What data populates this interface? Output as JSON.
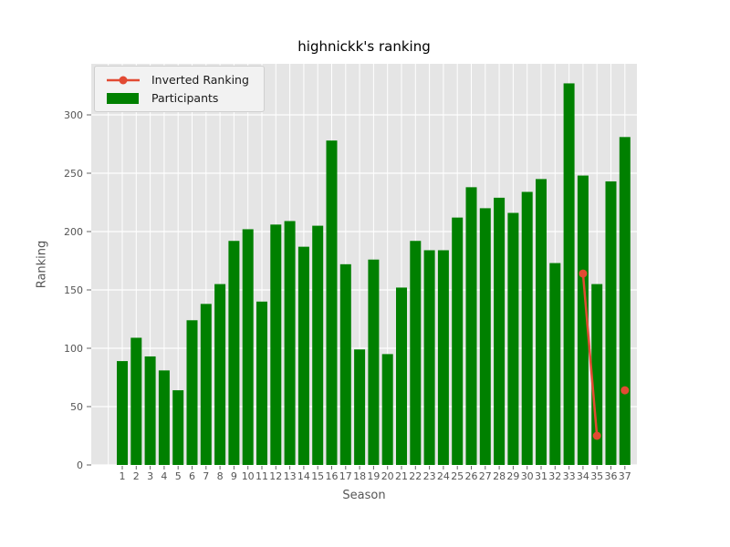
{
  "figure": {
    "background": "#ffffff"
  },
  "chart_data": {
    "type": "bar",
    "subtype": "bar+line combo",
    "title": "highnickk's ranking",
    "xlabel": "Season",
    "ylabel": "Ranking",
    "categories": [
      "1",
      "2",
      "3",
      "4",
      "5",
      "6",
      "7",
      "8",
      "9",
      "10",
      "11",
      "12",
      "13",
      "14",
      "15",
      "16",
      "17",
      "18",
      "19",
      "20",
      "21",
      "22",
      "23",
      "24",
      "25",
      "26",
      "27",
      "28",
      "29",
      "30",
      "31",
      "32",
      "33",
      "34",
      "35",
      "36",
      "37"
    ],
    "series": [
      {
        "name": "Inverted Ranking",
        "type": "line",
        "color": "#E24A33",
        "values": [
          null,
          null,
          null,
          null,
          null,
          null,
          null,
          null,
          null,
          null,
          null,
          null,
          null,
          null,
          null,
          null,
          null,
          null,
          null,
          null,
          null,
          null,
          null,
          null,
          null,
          null,
          null,
          null,
          null,
          null,
          null,
          null,
          null,
          164,
          25,
          null,
          64
        ]
      },
      {
        "name": "Participants",
        "type": "bar",
        "color": "#008000",
        "values": [
          89,
          109,
          93,
          81,
          64,
          124,
          138,
          155,
          192,
          202,
          140,
          206,
          209,
          187,
          205,
          278,
          172,
          99,
          176,
          95,
          152,
          192,
          184,
          184,
          212,
          238,
          220,
          229,
          216,
          234,
          245,
          173,
          327,
          248,
          155,
          243,
          281
        ]
      }
    ],
    "yticks": [
      0,
      50,
      100,
      150,
      200,
      250,
      300
    ],
    "ylim": [
      0,
      344
    ],
    "grid": true,
    "legend_position": "upper left",
    "plot_background": "#E5E5E5",
    "grid_color": "#FFFFFF",
    "tick_color": "#555555"
  }
}
